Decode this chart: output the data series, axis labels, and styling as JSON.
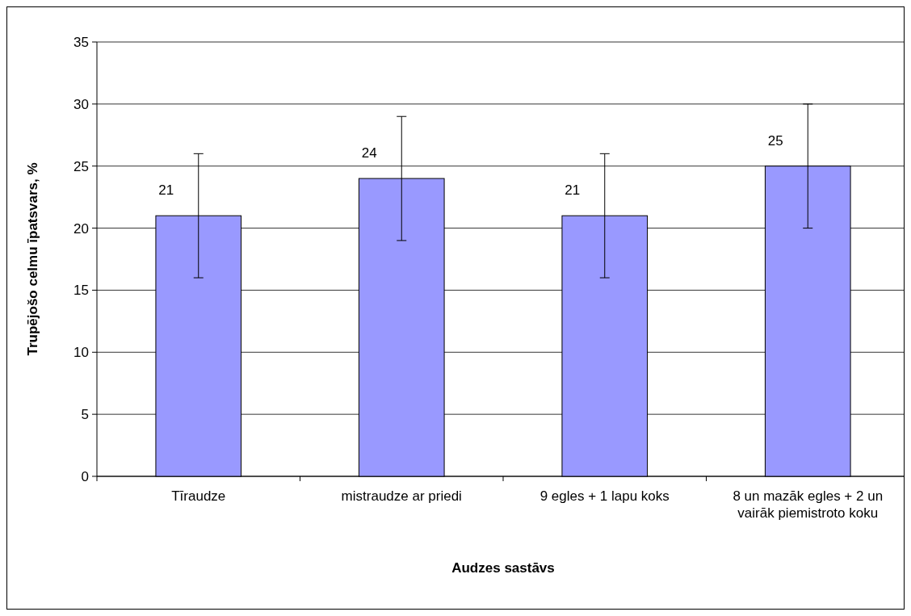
{
  "chart_data": {
    "type": "bar",
    "xlabel": "Audzes sastāvs",
    "ylabel": "Trupējošo celmu īpatsvars, %",
    "categories": [
      "Tīraudze",
      "mistraudze ar priedi",
      "9 egles + 1 lapu koks",
      "8 un mazāk egles + 2 un vairāk piemistroto koku"
    ],
    "values": [
      21,
      24,
      21,
      25
    ],
    "errors": [
      5,
      5,
      5,
      5
    ],
    "color": "#9999ff",
    "ylim": [
      0,
      35
    ],
    "yticks": [
      0,
      5,
      10,
      15,
      20,
      25,
      30,
      35
    ],
    "grid": "y",
    "data_labels": true
  }
}
